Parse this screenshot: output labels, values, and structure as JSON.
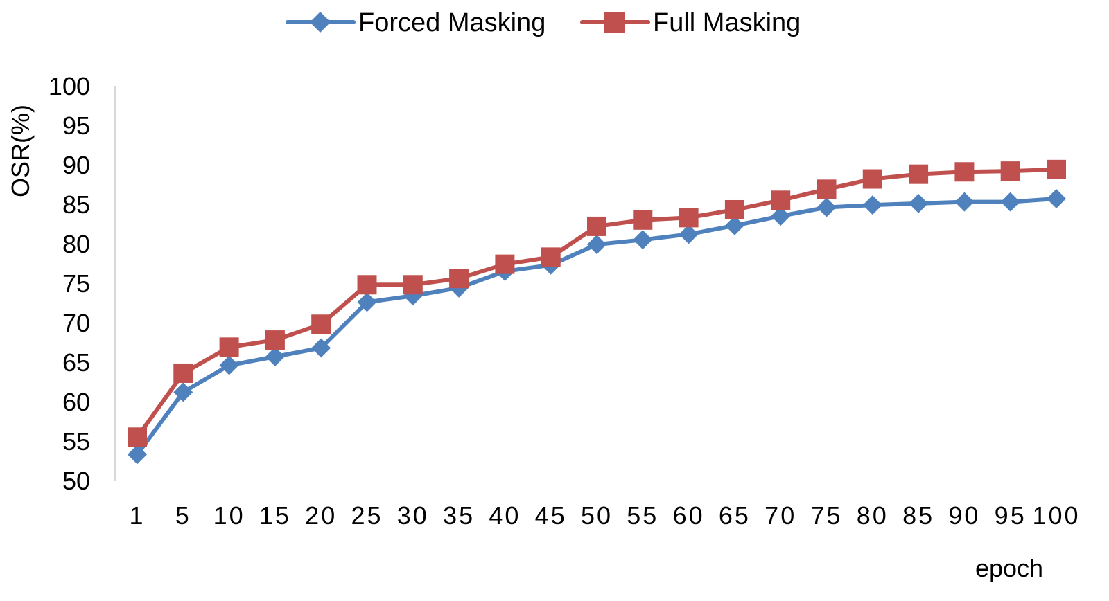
{
  "chart_data": {
    "type": "line",
    "title": "",
    "xlabel": "epoch",
    "ylabel": "OSR(%)",
    "ylim": [
      50,
      100
    ],
    "yticks": [
      50,
      55,
      60,
      65,
      70,
      75,
      80,
      85,
      90,
      95,
      100
    ],
    "categories": [
      "1",
      "5",
      "10",
      "15",
      "20",
      "25",
      "30",
      "35",
      "40",
      "45",
      "50",
      "55",
      "60",
      "65",
      "70",
      "75",
      "80",
      "85",
      "90",
      "95",
      "100"
    ],
    "grid": false,
    "legend_position": "top-center",
    "series": [
      {
        "name": "Forced Masking",
        "color": "#4f81bd",
        "marker": "diamond",
        "values": [
          53.3,
          61.2,
          64.6,
          65.7,
          66.8,
          72.6,
          73.4,
          74.4,
          76.5,
          77.3,
          79.9,
          80.5,
          81.2,
          82.3,
          83.5,
          84.6,
          84.9,
          85.1,
          85.3,
          85.3,
          85.7
        ]
      },
      {
        "name": "Full Masking",
        "color": "#c0504d",
        "marker": "square",
        "values": [
          55.5,
          63.6,
          66.9,
          67.8,
          69.8,
          74.8,
          74.8,
          75.6,
          77.4,
          78.3,
          82.2,
          83.0,
          83.3,
          84.3,
          85.5,
          86.9,
          88.2,
          88.8,
          89.1,
          89.2,
          89.4
        ]
      }
    ]
  }
}
